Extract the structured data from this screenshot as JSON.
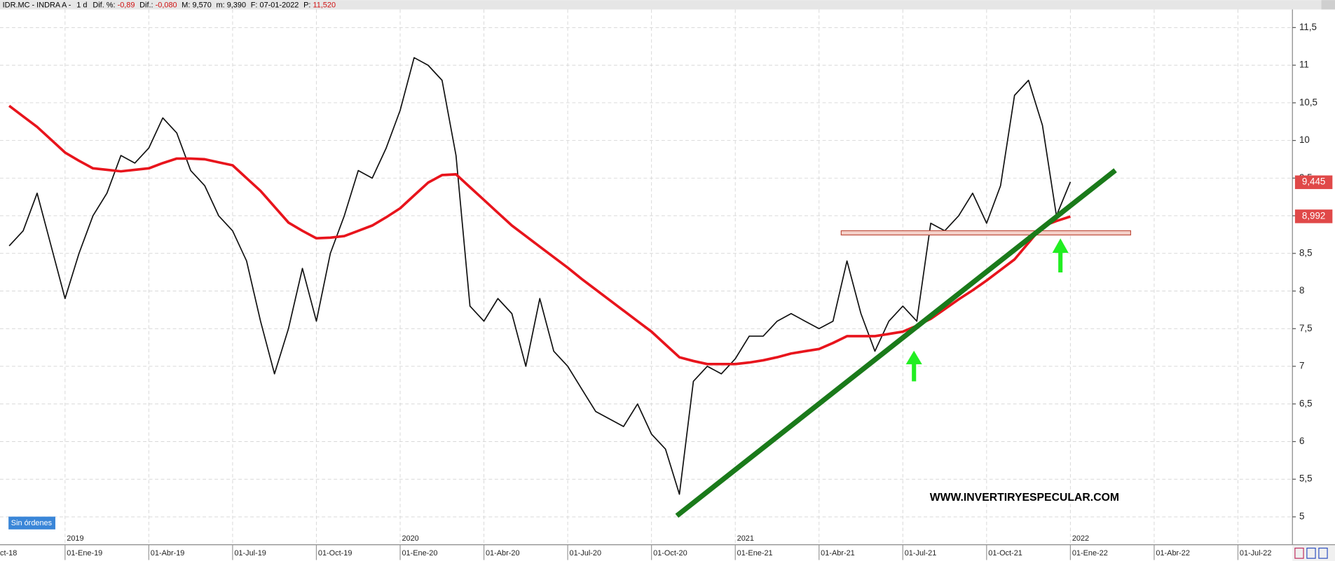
{
  "header": {
    "symbol": "IDR.MC - INDRA A -",
    "period": "1 d",
    "dif_pct_label": "Dif. %:",
    "dif_pct": "-0,89",
    "dif_label": "Dif.:",
    "dif": "-0,080",
    "max_label": "M:",
    "max": "9,570",
    "min_label": "m:",
    "min": "9,390",
    "date_label": "F:",
    "date": "07-01-2022",
    "p_label": "P:",
    "p": "11,520"
  },
  "status": "Sin órdenes",
  "watermark": "WWW.INVERTIRYESPECULAR.COM",
  "chart_data": {
    "type": "line",
    "categories": [
      "ct-18",
      null,
      null,
      null,
      null,
      null,
      "01-Ene-19",
      null,
      null,
      null,
      null,
      null,
      "01-Abr-19",
      null,
      null,
      null,
      null,
      null,
      "01-Jul-19",
      null,
      null,
      null,
      null,
      null,
      "01-Oct-19",
      null,
      null,
      null,
      null,
      null,
      "01-Ene-20",
      null,
      null,
      null,
      null,
      null,
      "01-Abr-20",
      null,
      null,
      null,
      null,
      null,
      "01-Jul-20",
      null,
      null,
      null,
      null,
      null,
      "01-Oct-20",
      null,
      null,
      null,
      null,
      null,
      "01-Ene-21",
      null,
      null,
      null,
      null,
      null,
      "01-Abr-21",
      null,
      null,
      null,
      null,
      null,
      "01-Jul-21",
      null,
      null,
      null,
      null,
      null,
      "01-Oct-21",
      null,
      null,
      null,
      null,
      null,
      "01-Ene-22",
      null,
      null,
      null,
      null,
      null,
      "01-Abr-22",
      null,
      null,
      null,
      null,
      null,
      "01-Jul-22",
      null,
      null,
      null,
      null
    ],
    "year_labels": [
      "2019",
      "2020",
      "2021",
      "2022"
    ],
    "series": [
      {
        "color": "#111111",
        "values": [
          null,
          null,
          8.6,
          8.8,
          9.3,
          8.6,
          7.9,
          8.5,
          9.0,
          9.3,
          9.8,
          9.7,
          9.9,
          10.3,
          10.1,
          9.6,
          9.4,
          9.0,
          8.8,
          8.4,
          7.6,
          6.9,
          7.5,
          8.3,
          7.6,
          8.5,
          9.0,
          9.6,
          9.5,
          9.9,
          10.4,
          11.1,
          11.0,
          10.8,
          9.8,
          7.8,
          7.6,
          7.9,
          7.7,
          7.0,
          7.9,
          7.2,
          7.0,
          6.7,
          6.4,
          6.3,
          6.2,
          6.5,
          6.1,
          5.9,
          5.3,
          6.8,
          7.0,
          6.9,
          7.1,
          7.4,
          7.4,
          7.6,
          7.7,
          7.6,
          7.5,
          7.6,
          8.4,
          7.7,
          7.2,
          7.6,
          7.8,
          7.6,
          8.9,
          8.8,
          9.0,
          9.3,
          8.9,
          9.4,
          10.6,
          10.8,
          10.2,
          9.0,
          9.45,
          null,
          null,
          null,
          null,
          null,
          null,
          null,
          null,
          null,
          null,
          null,
          null,
          null,
          null,
          null,
          null
        ]
      },
      {
        "color": "#e8141c",
        "values": [
          null,
          null,
          10.46,
          10.32,
          10.18,
          10.01,
          9.84,
          9.73,
          9.63,
          9.61,
          9.59,
          9.61,
          9.63,
          9.7,
          9.76,
          9.76,
          9.75,
          9.71,
          9.67,
          9.5,
          9.33,
          9.12,
          8.91,
          8.8,
          8.7,
          8.71,
          8.73,
          8.8,
          8.87,
          8.98,
          9.1,
          9.27,
          9.44,
          9.54,
          9.55,
          9.38,
          9.21,
          9.04,
          8.87,
          8.73,
          8.59,
          8.45,
          8.31,
          8.16,
          8.02,
          7.88,
          7.74,
          7.6,
          7.46,
          7.29,
          7.12,
          7.07,
          7.03,
          7.03,
          7.03,
          7.05,
          7.08,
          7.12,
          7.17,
          7.2,
          7.23,
          7.31,
          7.4,
          7.4,
          7.4,
          7.43,
          7.46,
          7.54,
          7.63,
          7.76,
          7.89,
          8.01,
          8.14,
          8.28,
          8.42,
          8.64,
          8.86,
          8.93,
          8.99,
          null,
          null,
          null,
          null,
          null,
          null,
          null,
          null,
          null,
          null,
          null,
          null,
          null,
          null,
          null,
          null
        ]
      }
    ],
    "last_price": {
      "value": 9.445,
      "label": "9,445"
    },
    "ma_value": {
      "value": 8.992,
      "label": "8,992"
    },
    "marker_color": "#e04848",
    "ylim": [
      4.63,
      11.74
    ],
    "yticks": [
      5,
      {
        "value": 5.5,
        "label": "5,5"
      },
      6,
      {
        "value": 6.5,
        "label": "6,5"
      },
      7,
      {
        "value": 7.5,
        "label": "7,5"
      },
      8,
      {
        "value": 8.5,
        "label": "8,5"
      },
      9,
      {
        "value": 9.5,
        "label": "9,5"
      },
      10,
      {
        "value": 10.5,
        "label": "10,5"
      },
      11,
      {
        "value": 11.5,
        "label": "11,5"
      }
    ],
    "grid": true
  }
}
